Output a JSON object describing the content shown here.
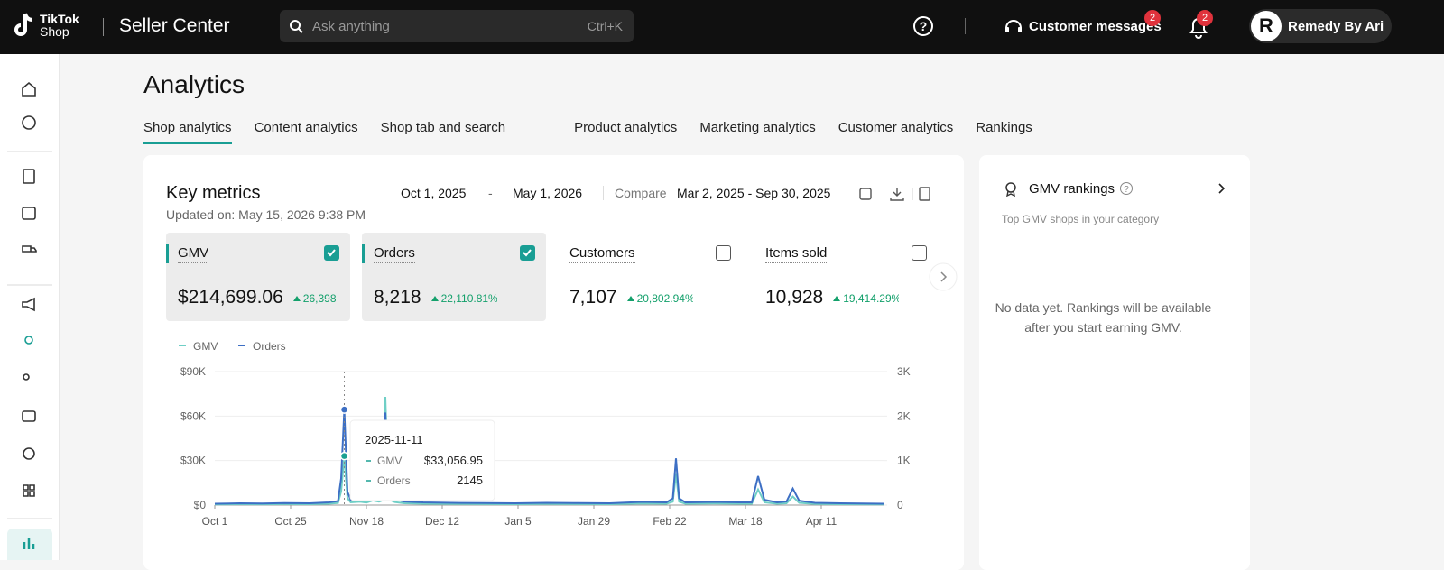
{
  "header": {
    "logo_top": "TikTok",
    "logo_bottom": "Shop",
    "product": "Seller Center",
    "search_placeholder": "Ask anything",
    "search_shortcut": "Ctrl+K",
    "messages": "Customer messages",
    "messages_badge": "2",
    "notifications_badge": "2",
    "account_initial": "R",
    "account": "Remedy By Ari"
  },
  "page_title": "Analytics",
  "tabs": [
    {
      "label": "Shop analytics",
      "active": true
    },
    {
      "label": "Content analytics",
      "active": false
    },
    {
      "label": "Shop tab and search",
      "active": false
    },
    {
      "label": "Product analytics",
      "active": false
    },
    {
      "label": "Marketing analytics",
      "active": false
    },
    {
      "label": "Customer analytics",
      "active": false
    },
    {
      "label": "Rankings",
      "active": false
    }
  ],
  "key_metrics": {
    "title": "Key metrics",
    "updated": "Updated on: May 15, 2026 9:38 PM",
    "start_date": "Oct 1, 2025",
    "date_separator": "-",
    "end_date": "May 1, 2026",
    "compare_label": "Compare",
    "compare_range": "Mar 2, 2025 - Sep 30, 2025",
    "metrics": [
      {
        "name": "GMV",
        "value": "$214,699.06",
        "change": "26,398",
        "selected": true
      },
      {
        "name": "Orders",
        "value": "8,218",
        "change": "22,110.81%",
        "selected": true
      },
      {
        "name": "Customers",
        "value": "7,107",
        "change": "20,802.94%",
        "selected": false
      },
      {
        "name": "Items sold",
        "value": "10,928",
        "change": "19,414.29%",
        "selected": false
      }
    ]
  },
  "chart_data": {
    "type": "line",
    "x": [
      0,
      8,
      15,
      22,
      30,
      36,
      39,
      40,
      41,
      42,
      43,
      46,
      48,
      50,
      52,
      53,
      54,
      55,
      57,
      60,
      66,
      75,
      85,
      95,
      105,
      115,
      125,
      135,
      143,
      145,
      146,
      147,
      149,
      158,
      166,
      170,
      172,
      174,
      178,
      181,
      183,
      185,
      190,
      198,
      205,
      212
    ],
    "series": [
      {
        "name": "GMV",
        "color": "#6fcfc6",
        "axis": "y",
        "values": [
          460,
          620,
          540,
          690,
          610,
          920,
          1380,
          9200,
          33056.95,
          4600,
          1850,
          2300,
          1700,
          3100,
          2300,
          3100,
          73000,
          3850,
          2000,
          1230,
          920,
          770,
          690,
          610,
          770,
          690,
          610,
          1080,
          920,
          2300,
          21000,
          2300,
          920,
          1080,
          920,
          920,
          10500,
          1850,
          920,
          1230,
          5700,
          1540,
          770,
          610,
          540,
          460
        ]
      },
      {
        "name": "Orders",
        "color": "#3d6fc4",
        "axis": "y2",
        "values": [
          30,
          40,
          35,
          45,
          40,
          60,
          90,
          600,
          2145,
          300,
          120,
          150,
          110,
          200,
          150,
          200,
          2080,
          250,
          130,
          80,
          60,
          50,
          45,
          40,
          50,
          45,
          40,
          70,
          60,
          150,
          1050,
          150,
          60,
          70,
          60,
          60,
          650,
          120,
          60,
          80,
          370,
          100,
          50,
          40,
          35,
          30
        ]
      }
    ],
    "xlim": [
      0,
      212
    ],
    "xticks": [
      {
        "value": 0,
        "label": "Oct 1"
      },
      {
        "value": 24,
        "label": "Oct 25"
      },
      {
        "value": 48,
        "label": "Nov 18"
      },
      {
        "value": 72,
        "label": "Dec 12"
      },
      {
        "value": 96,
        "label": "Jan 5"
      },
      {
        "value": 120,
        "label": "Jan 29"
      },
      {
        "value": 144,
        "label": "Feb 22"
      },
      {
        "value": 168,
        "label": "Mar 18"
      },
      {
        "value": 192,
        "label": "Apr 11"
      }
    ],
    "ylim": [
      0,
      90000
    ],
    "yticks": [
      {
        "value": 0,
        "label": "$0"
      },
      {
        "value": 30000,
        "label": "$30K"
      },
      {
        "value": 60000,
        "label": "$60K"
      },
      {
        "value": 90000,
        "label": "$90K"
      }
    ],
    "y2lim": [
      0,
      3000
    ],
    "y2ticks": [
      0,
      {
        "value": 1000,
        "label": "1K"
      },
      {
        "value": 2000,
        "label": "2K"
      },
      {
        "value": 3000,
        "label": "3K"
      }
    ],
    "grid": true,
    "tooltip": {
      "x": 41,
      "label": "2025-11-11",
      "gmv": "$33,056.95",
      "orders": "2145"
    }
  },
  "gmv_rankings": {
    "title": "GMV rankings",
    "subtitle": "Top GMV shops in your category",
    "empty": "No data yet. Rankings will be available after you start earning GMV."
  }
}
